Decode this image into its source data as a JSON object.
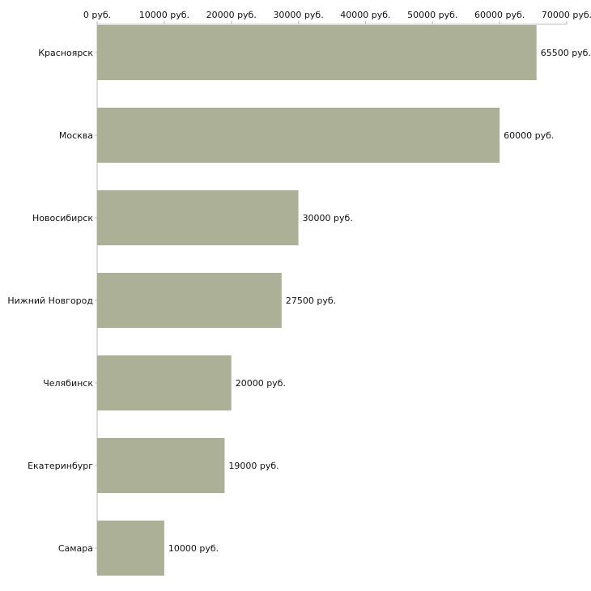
{
  "chart_data": {
    "type": "bar",
    "orientation": "horizontal",
    "title": "",
    "xlabel": "",
    "ylabel": "",
    "currency_suffix": "руб.",
    "xlim": [
      0,
      70000
    ],
    "x_ticks": [
      0,
      10000,
      20000,
      30000,
      40000,
      50000,
      60000,
      70000
    ],
    "x_tick_labels": [
      "0 руб.",
      "10000 руб.",
      "20000 руб.",
      "30000 руб.",
      "40000 руб.",
      "50000 руб.",
      "60000 руб.",
      "70000 руб."
    ],
    "axis_position": "top",
    "grid": false,
    "categories": [
      "Красноярск",
      "Москва",
      "Новосибирск",
      "Нижний Новгород",
      "Челябинск",
      "Екатеринбург",
      "Самара"
    ],
    "values": [
      65500,
      60000,
      30000,
      27500,
      20000,
      19000,
      10000
    ],
    "value_labels": [
      "65500 руб.",
      "60000 руб.",
      "30000 руб.",
      "27500 руб.",
      "20000 руб.",
      "19000 руб.",
      "10000 руб."
    ],
    "bar_color": "#abb096",
    "axis_color": "#bbbbbb"
  }
}
